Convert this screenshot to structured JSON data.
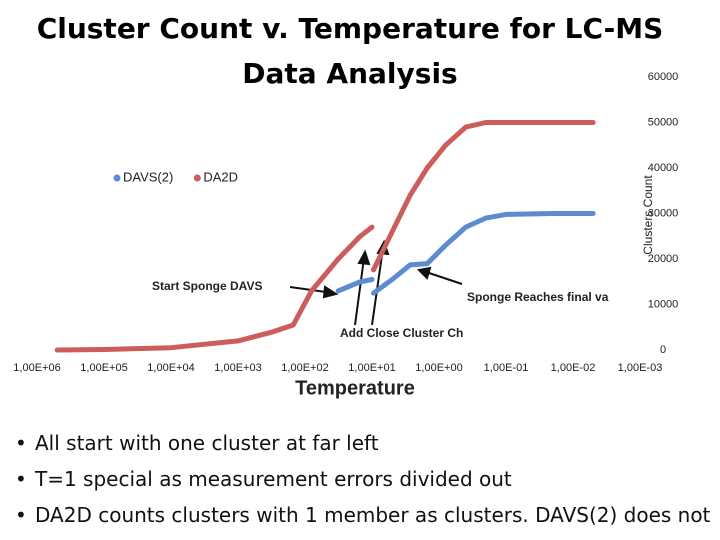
{
  "chart_data": {
    "type": "line",
    "title": "Cluster Count v. Temperature for LC-MS Data Analysis",
    "x_label": "Temperature",
    "y_label": "Clusters Count",
    "log_x": true,
    "grid": false,
    "legend": "upper left",
    "x": [
      500000,
      100000,
      10000,
      1000,
      300,
      150,
      80,
      32,
      15,
      10,
      9.9,
      9.5,
      5,
      2.7,
      1.5,
      0.8,
      0.4,
      0.2,
      0.1,
      0.02,
      0.005
    ],
    "series": [
      {
        "name": "DAVS(2)",
        "color": "#5b8bd0",
        "values": [
          null,
          null,
          null,
          null,
          null,
          null,
          null,
          13000,
          15000,
          15500,
          null,
          12500,
          15500,
          18700,
          19000,
          23000,
          27000,
          29000,
          29800,
          30000,
          30000
        ]
      },
      {
        "name": "DA2D",
        "color": "#cd5c5c",
        "values": [
          0,
          100,
          500,
          2000,
          4000,
          5500,
          13000,
          20000,
          25000,
          27000,
          null,
          17600,
          26000,
          34000,
          40000,
          45000,
          49000,
          50000,
          50000,
          50000,
          50000
        ]
      }
    ],
    "xlim": [
      1000000,
      0.001
    ],
    "xticks": [
      {
        "value": 1000000,
        "label": "1,00E+06"
      },
      {
        "value": 100000,
        "label": "1,00E+05"
      },
      {
        "value": 10000,
        "label": "1,00E+04"
      },
      {
        "value": 1000,
        "label": "1,00E+03"
      },
      {
        "value": 100,
        "label": "1,00E+02"
      },
      {
        "value": 10,
        "label": "1,00E+01"
      },
      {
        "value": 1,
        "label": "1,00E+00"
      },
      {
        "value": 0.1,
        "label": "1,00E-01"
      },
      {
        "value": 0.01,
        "label": "1,00E-02"
      },
      {
        "value": 0.001,
        "label": "1,00E-03"
      }
    ],
    "ylim": [
      0,
      60000
    ],
    "yticks": [
      0,
      10000,
      20000,
      30000,
      40000,
      50000,
      60000
    ],
    "annotations": [
      "Start Sponge DAVS",
      "Sponge Reaches final va",
      "Add Close Cluster Ch"
    ]
  },
  "bullets": [
    "All start with one cluster at far left",
    "T=1 special as measurement errors divided out",
    "DA2D counts clusters with 1 member as clusters. DAVS(2) does not"
  ]
}
